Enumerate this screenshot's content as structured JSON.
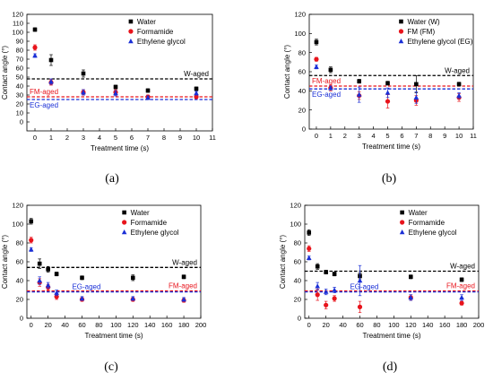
{
  "chart_data": [
    {
      "type": "scatter",
      "panel_label": "(a)",
      "xlabel": "Treatment time (s)",
      "ylabel": "Contact angle (°)",
      "xlim": [
        -0.5,
        11
      ],
      "ylim": [
        -10,
        120
      ],
      "xticks": [
        0,
        1,
        2,
        3,
        4,
        5,
        6,
        7,
        8,
        9,
        10,
        11
      ],
      "yticks": [
        0,
        10,
        20,
        30,
        40,
        50,
        60,
        70,
        80,
        90,
        100,
        110,
        120
      ],
      "legend_position": "top-right",
      "series": [
        {
          "name": "Water",
          "color": "#000000",
          "marker": "square",
          "x": [
            0,
            1,
            3,
            5,
            7,
            10
          ],
          "y": [
            103,
            69,
            54,
            39,
            35,
            37
          ],
          "err": [
            2,
            6,
            4,
            2,
            2,
            2
          ]
        },
        {
          "name": "Formamide",
          "color": "#e8141c",
          "marker": "circle",
          "x": [
            0,
            1,
            3,
            5,
            7,
            10
          ],
          "y": [
            83,
            44,
            33,
            33,
            28,
            28
          ],
          "err": [
            3,
            3,
            3,
            3,
            2,
            2
          ]
        },
        {
          "name": "Ethylene glycol",
          "color": "#1a2fd6",
          "marker": "triangle",
          "x": [
            0,
            1,
            3,
            5,
            7,
            10
          ],
          "y": [
            74,
            45,
            33,
            32,
            27,
            32
          ],
          "err": [
            2,
            3,
            3,
            3,
            2,
            2
          ]
        }
      ],
      "reference_lines": [
        {
          "label": "W-aged",
          "y": 48,
          "color": "#000000",
          "label_side": "right"
        },
        {
          "label": "FM-aged",
          "y": 28,
          "color": "#e8141c",
          "label_side": "left"
        },
        {
          "label": "EG-aged",
          "y": 25,
          "color": "#1a2fd6",
          "label_side": "left-below"
        }
      ]
    },
    {
      "type": "scatter",
      "panel_label": "(b)",
      "xlabel": "Treatment time (s)",
      "ylabel": "Contact angle (°)",
      "xlim": [
        -0.5,
        11
      ],
      "ylim": [
        0,
        120
      ],
      "xticks": [
        0,
        1,
        2,
        3,
        4,
        5,
        6,
        7,
        8,
        9,
        10,
        11
      ],
      "yticks": [
        0,
        20,
        40,
        60,
        80,
        100,
        120
      ],
      "legend_position": "top-right",
      "series": [
        {
          "name": "Water (W)",
          "color": "#000000",
          "marker": "square",
          "x": [
            0,
            1,
            3,
            5,
            7,
            10
          ],
          "y": [
            91,
            62,
            50,
            48,
            47,
            47
          ],
          "err": [
            3,
            3,
            2,
            2,
            9,
            2
          ]
        },
        {
          "name": "FM (FM)",
          "color": "#e8141c",
          "marker": "circle",
          "x": [
            0,
            1,
            3,
            5,
            7,
            10
          ],
          "y": [
            73,
            43,
            35,
            29,
            30,
            33
          ],
          "err": [
            2,
            3,
            4,
            7,
            5,
            4
          ]
        },
        {
          "name": "Ethylene glycol (EG)",
          "color": "#1a2fd6",
          "marker": "triangle",
          "x": [
            0,
            1,
            3,
            5,
            7,
            10
          ],
          "y": [
            65,
            43,
            36,
            38,
            33,
            35
          ],
          "err": [
            2,
            2,
            8,
            5,
            6,
            3
          ]
        }
      ],
      "reference_lines": [
        {
          "label": "W-aged",
          "y": 56,
          "color": "#000000",
          "label_side": "right"
        },
        {
          "label": "FM-aged",
          "y": 45,
          "color": "#e8141c",
          "label_side": "left"
        },
        {
          "label": "EG-aged",
          "y": 42,
          "color": "#1a2fd6",
          "label_side": "left-below"
        }
      ]
    },
    {
      "type": "scatter",
      "panel_label": "(c)",
      "xlabel": "Treatment time (s)",
      "ylabel": "Contact angle (°)",
      "xlim": [
        -5,
        200
      ],
      "ylim": [
        0,
        120
      ],
      "xticks": [
        0,
        20,
        40,
        60,
        80,
        100,
        120,
        140,
        160,
        180,
        200
      ],
      "yticks": [
        0,
        20,
        40,
        60,
        80,
        100,
        120
      ],
      "legend_position": "top-right",
      "series": [
        {
          "name": "Water",
          "color": "#000000",
          "marker": "square",
          "x": [
            0,
            10,
            20,
            30,
            60,
            120,
            180
          ],
          "y": [
            103,
            58,
            52,
            47,
            43,
            43,
            44
          ],
          "err": [
            3,
            5,
            3,
            2,
            2,
            3,
            2
          ]
        },
        {
          "name": "Formamide",
          "color": "#e8141c",
          "marker": "circle",
          "x": [
            0,
            10,
            20,
            30,
            60,
            120,
            180
          ],
          "y": [
            83,
            38,
            33,
            23,
            20,
            20,
            19
          ],
          "err": [
            3,
            4,
            3,
            3,
            2,
            2,
            2
          ]
        },
        {
          "name": "Ethylene glycol",
          "color": "#1a2fd6",
          "marker": "triangle",
          "x": [
            0,
            10,
            20,
            30,
            60,
            120,
            180
          ],
          "y": [
            73,
            40,
            35,
            27,
            21,
            21,
            20
          ],
          "err": [
            2,
            4,
            3,
            3,
            2,
            2,
            2
          ]
        }
      ],
      "reference_lines": [
        {
          "label": "W-aged",
          "y": 54,
          "color": "#000000",
          "label_side": "right"
        },
        {
          "label": "FM-aged",
          "y": 29,
          "color": "#e8141c",
          "label_side": "right"
        },
        {
          "label": "EG-aged",
          "y": 28,
          "color": "#1a2fd6",
          "label_side": "left-mid"
        }
      ]
    },
    {
      "type": "scatter",
      "panel_label": "(d)",
      "xlabel": "Treatment time (s)",
      "ylabel": "Contact angle (°)",
      "xlim": [
        -5,
        200
      ],
      "ylim": [
        0,
        120
      ],
      "xticks": [
        0,
        20,
        40,
        60,
        80,
        100,
        120,
        140,
        160,
        180,
        200
      ],
      "yticks": [
        0,
        20,
        40,
        60,
        80,
        100,
        120
      ],
      "legend_position": "top-right",
      "series": [
        {
          "name": "Water",
          "color": "#000000",
          "marker": "square",
          "x": [
            0,
            10,
            20,
            30,
            60,
            120,
            180
          ],
          "y": [
            91,
            55,
            49,
            47,
            45,
            44,
            41
          ],
          "err": [
            3,
            3,
            2,
            2,
            3,
            2,
            2
          ]
        },
        {
          "name": "Formamide",
          "color": "#e8141c",
          "marker": "circle",
          "x": [
            0,
            10,
            20,
            30,
            60,
            120,
            180
          ],
          "y": [
            74,
            25,
            14,
            21,
            12,
            22,
            16
          ],
          "err": [
            3,
            6,
            4,
            3,
            6,
            3,
            2
          ]
        },
        {
          "name": "Ethylene glycol",
          "color": "#1a2fd6",
          "marker": "triangle",
          "x": [
            0,
            10,
            20,
            30,
            60,
            120,
            180
          ],
          "y": [
            64,
            34,
            28,
            30,
            40,
            22,
            22
          ],
          "err": [
            2,
            4,
            3,
            3,
            16,
            3,
            3
          ]
        }
      ],
      "reference_lines": [
        {
          "label": "W-aged",
          "y": 50,
          "color": "#000000",
          "label_side": "right"
        },
        {
          "label": "FM-aged",
          "y": 29,
          "color": "#e8141c",
          "label_side": "right"
        },
        {
          "label": "EG-aged",
          "y": 28,
          "color": "#1a2fd6",
          "label_side": "left-mid"
        }
      ]
    }
  ]
}
